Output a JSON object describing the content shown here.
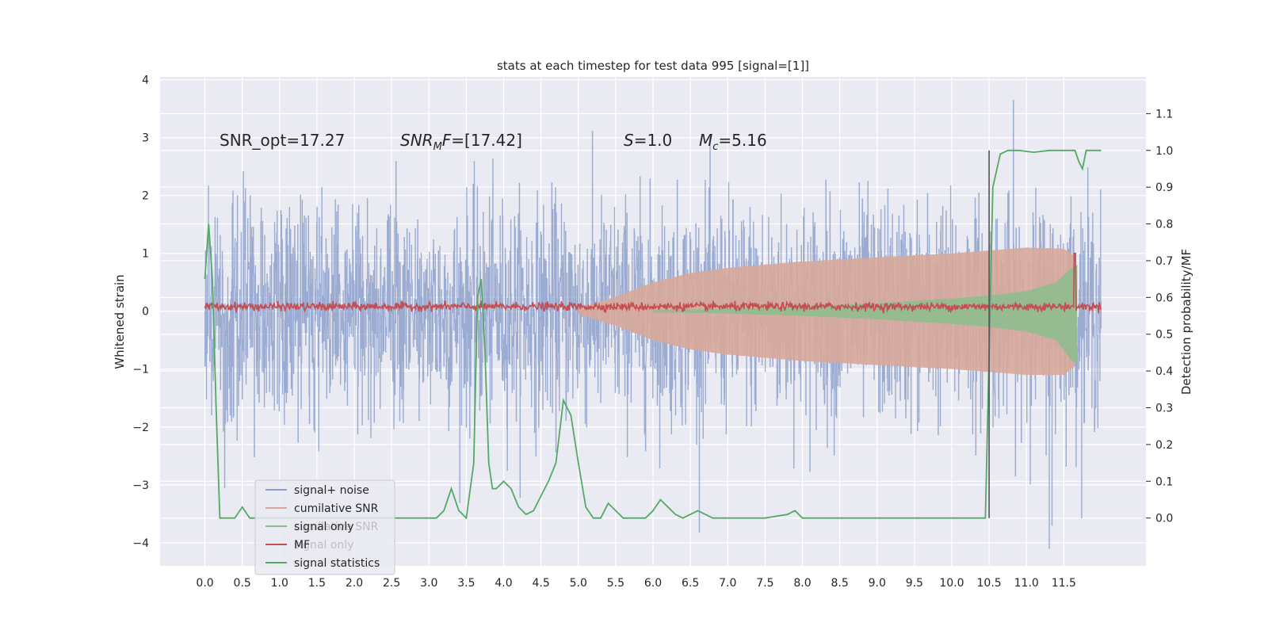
{
  "chart_data": {
    "type": "line",
    "title": "stats at each timestep for test data 995 [signal=[1]]",
    "xlabel": "",
    "ylabel_left": "Whitened strain",
    "ylabel_right": "Detection probability/MF",
    "xlim": [
      -0.6,
      12.6
    ],
    "ylim_left": [
      -4.4,
      4.05
    ],
    "ylim_right": [
      -0.13,
      1.2
    ],
    "x_ticks": [
      0.0,
      0.5,
      1.0,
      1.5,
      2.0,
      2.5,
      3.0,
      3.5,
      4.0,
      4.5,
      5.0,
      5.5,
      6.0,
      6.5,
      7.0,
      7.5,
      8.0,
      8.5,
      9.0,
      9.5,
      10.0,
      10.5,
      11.0,
      11.5
    ],
    "x_tick_labels": [
      "0.0",
      "0.5",
      "1.0",
      "1.5",
      "2.0",
      "2.5",
      "3.0",
      "3.5",
      "4.0",
      "4.5",
      "5.0",
      "5.5",
      "6.0",
      "6.5",
      "7.0",
      "7.5",
      "8.0",
      "8.5",
      "9.0",
      "9.5",
      "10.0",
      "10.5",
      "11.0",
      "11.5"
    ],
    "y_ticks_left": [
      4,
      3,
      2,
      1,
      0,
      -1,
      -2,
      -3,
      -4
    ],
    "y_tick_labels_left": [
      "4",
      "3",
      "2",
      "1",
      "0",
      "−1",
      "−2",
      "−3",
      "−4"
    ],
    "y_ticks_right": [
      1.1,
      1.0,
      0.9,
      0.8,
      0.7,
      0.6,
      0.5,
      0.4,
      0.3,
      0.2,
      0.1,
      0.0
    ],
    "y_tick_labels_right": [
      "1.1",
      "1.0",
      "0.9",
      "0.8",
      "0.7",
      "0.6",
      "0.5",
      "0.4",
      "0.3",
      "0.2",
      "0.1",
      "0.0"
    ],
    "annotations": {
      "snr_opt": "SNR_opt=17.27",
      "snr_mf_main": "SNR",
      "snr_mf_sub": "M",
      "snr_mf_rest": "F",
      "snr_mf_value": "=[17.42]",
      "s_label": "S",
      "s_value": "=1.0",
      "mc_label": "M",
      "mc_sub": "c",
      "mc_value": "=5.16"
    },
    "vline_x": 10.5,
    "series": [
      {
        "name": "signal+ noise",
        "color": "#8da0cb",
        "kind": "noise",
        "x_range": [
          0.0,
          12.0
        ],
        "amplitude_sd": 0.95,
        "peak_max": 3.65,
        "peak_min": -4.1
      },
      {
        "name": "cumilative SNR",
        "color": "#d8a99a",
        "kind": "envelope",
        "x": [
          5.0,
          5.5,
          6.0,
          6.5,
          7.0,
          8.0,
          9.0,
          10.0,
          10.5,
          11.0,
          11.5,
          11.65
        ],
        "upper": [
          0.05,
          0.25,
          0.5,
          0.66,
          0.75,
          0.86,
          0.93,
          1.0,
          1.05,
          1.1,
          1.08,
          0.95
        ],
        "lower": [
          -0.05,
          -0.25,
          -0.5,
          -0.66,
          -0.75,
          -0.86,
          -0.93,
          -1.0,
          -1.05,
          -1.1,
          -1.1,
          -0.95
        ]
      },
      {
        "name": "signal only",
        "color": "#8fbc8f",
        "kind": "envelope",
        "x": [
          6.0,
          7.0,
          8.0,
          9.0,
          10.0,
          10.5,
          11.0,
          11.4,
          11.6,
          11.68
        ],
        "upper": [
          0.02,
          0.04,
          0.08,
          0.14,
          0.22,
          0.27,
          0.35,
          0.5,
          0.75,
          0.8
        ],
        "lower": [
          -0.02,
          -0.04,
          -0.08,
          -0.14,
          -0.22,
          -0.27,
          -0.35,
          -0.5,
          -0.85,
          -0.9
        ]
      },
      {
        "name": "MF",
        "color": "#c44e52",
        "kind": "mf",
        "x_range": [
          0.0,
          12.0
        ],
        "base": 0.08,
        "spike_x": 11.65,
        "spike_top": 1.0
      },
      {
        "name": "signal statistics",
        "color": "#55a868",
        "kind": "line",
        "axis": "right",
        "x": [
          0.0,
          0.05,
          0.1,
          0.15,
          0.2,
          0.3,
          0.4,
          0.5,
          0.6,
          0.7,
          0.8,
          1.0,
          1.5,
          2.0,
          2.5,
          2.8,
          3.1,
          3.2,
          3.3,
          3.4,
          3.5,
          3.6,
          3.65,
          3.7,
          3.75,
          3.8,
          3.85,
          3.9,
          4.0,
          4.1,
          4.2,
          4.3,
          4.4,
          4.5,
          4.6,
          4.7,
          4.8,
          4.9,
          5.0,
          5.1,
          5.2,
          5.3,
          5.4,
          5.5,
          5.6,
          5.7,
          5.8,
          5.9,
          6.0,
          6.1,
          6.2,
          6.3,
          6.4,
          6.5,
          6.6,
          6.7,
          6.8,
          6.9,
          7.0,
          7.5,
          7.8,
          7.9,
          8.0,
          8.5,
          9.0,
          10.0,
          10.45,
          10.55,
          10.65,
          10.75,
          10.9,
          11.1,
          11.3,
          11.6,
          11.65,
          11.7,
          11.75,
          11.8,
          12.0
        ],
        "y": [
          0.65,
          0.8,
          0.65,
          0.3,
          0.0,
          0.0,
          0.0,
          0.03,
          0.0,
          0.0,
          0.0,
          0.0,
          0.0,
          0.0,
          0.0,
          0.0,
          0.0,
          0.02,
          0.08,
          0.02,
          0.0,
          0.15,
          0.6,
          0.65,
          0.45,
          0.15,
          0.08,
          0.08,
          0.1,
          0.08,
          0.03,
          0.01,
          0.02,
          0.06,
          0.1,
          0.15,
          0.32,
          0.28,
          0.15,
          0.03,
          0.0,
          0.0,
          0.04,
          0.02,
          0.0,
          0.0,
          0.0,
          0.0,
          0.02,
          0.05,
          0.03,
          0.01,
          0.0,
          0.01,
          0.02,
          0.01,
          0.0,
          0.0,
          0.0,
          0.0,
          0.01,
          0.02,
          0.0,
          0.0,
          0.0,
          0.0,
          0.0,
          0.9,
          0.99,
          1.0,
          1.0,
          0.995,
          1.0,
          1.0,
          1.0,
          0.97,
          0.95,
          1.0,
          1.0
        ]
      }
    ],
    "legend": {
      "position": "lower-left",
      "entries": [
        {
          "label": "signal+ noise",
          "color": "#8da0cb"
        },
        {
          "label": "cumilative SNR",
          "color": "#d8a99a"
        },
        {
          "label": "signal only",
          "color": "#8fbc8f"
        },
        {
          "label": "MF",
          "color": "#c44e52"
        },
        {
          "label": "signal statistics",
          "color": "#55a868"
        }
      ],
      "ghost_entries": [
        "cumilative SNR",
        "signal only"
      ]
    },
    "grid": true,
    "colors": {
      "background": "#eaeaf2",
      "grid": "#ffffff",
      "vline": "#555555"
    }
  }
}
